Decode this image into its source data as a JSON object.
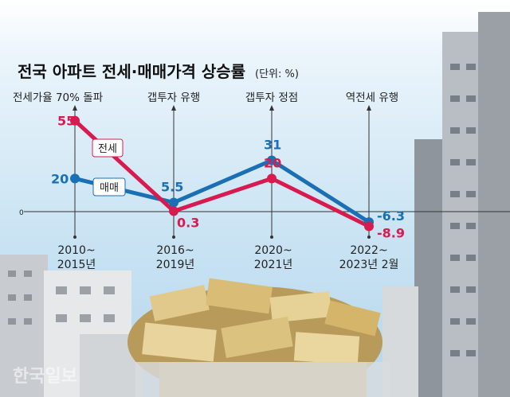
{
  "chart_data": {
    "type": "line",
    "title": "전국 아파트 전세·매매가격 상승률",
    "unit": "(단위: %)",
    "categories": [
      "2010~\n2015년",
      "2016~\n2019년",
      "2020~\n2021년",
      "2022~\n2023년 2월"
    ],
    "category_lines": [
      [
        "2010~",
        "2015년"
      ],
      [
        "2016~",
        "2019년"
      ],
      [
        "2020~",
        "2021년"
      ],
      [
        "2022~",
        "2023년 2월"
      ]
    ],
    "annotations": [
      "전세가율 70% 돌파",
      "갭투자 유행",
      "갭투자 정점",
      "역전세 유행"
    ],
    "zero_label": "0",
    "series": [
      {
        "name": "전세",
        "values": [
          55,
          0.3,
          20,
          -8.9
        ],
        "labels": [
          "55",
          "0.3",
          "20",
          "-8.9"
        ],
        "color": "#d81b4f"
      },
      {
        "name": "매매",
        "values": [
          20,
          5.5,
          31,
          -6.3
        ],
        "labels": [
          "20",
          "5.5",
          "31",
          "-6.3"
        ],
        "color": "#1a6fb5"
      }
    ],
    "grid": false,
    "legend": "inline"
  },
  "watermark": "한국일보"
}
